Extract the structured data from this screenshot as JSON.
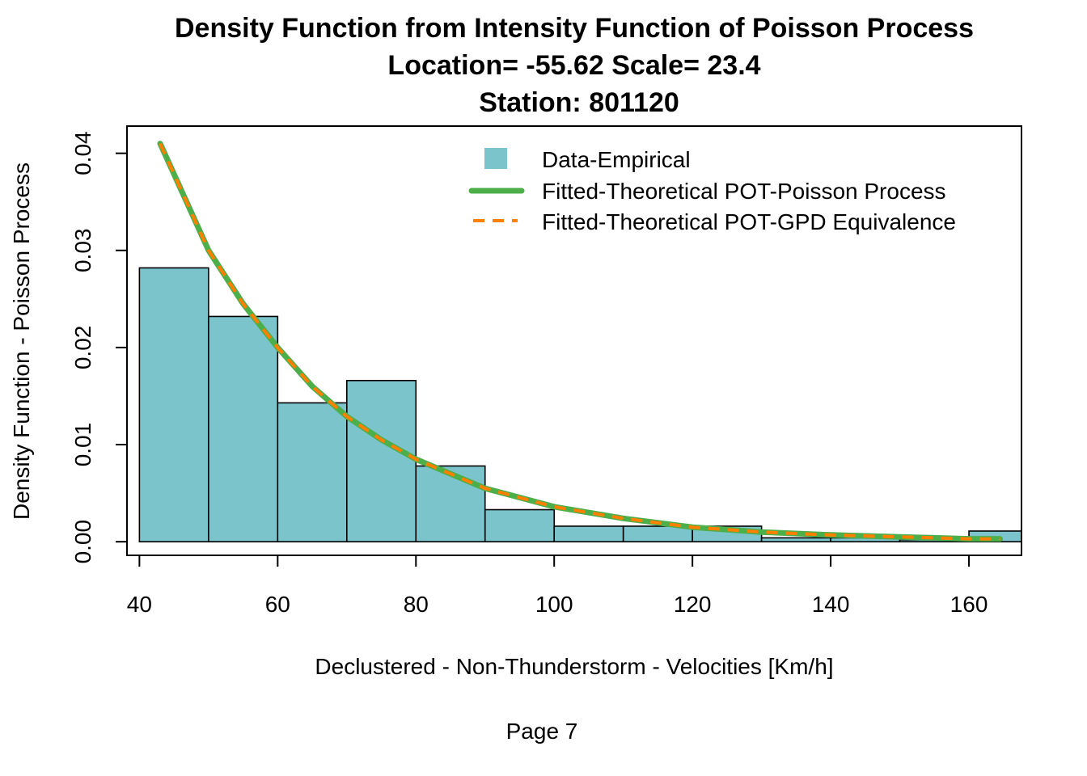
{
  "chart_data": {
    "type": "bar",
    "title_lines": [
      "Density Function from Intensity Function of Poisson Process",
      "Location= -55.62 Scale= 23.4",
      "Station: 801120"
    ],
    "xlabel": "Declustered - Non-Thunderstorm - Velocities [Km/h]",
    "ylabel": "Density Function - Poisson Process",
    "footer": "Page 7",
    "xlim": [
      38.2,
      167.6
    ],
    "ylim": [
      -0.0014,
      0.0428
    ],
    "x_ticks": [
      40,
      60,
      80,
      100,
      120,
      140,
      160
    ],
    "y_ticks": [
      0.0,
      0.01,
      0.02,
      0.03,
      0.04
    ],
    "y_tick_labels": [
      "0.00",
      "0.01",
      "0.02",
      "0.03",
      "0.04"
    ],
    "histogram": {
      "name": "Data-Empirical",
      "color": "#7CC4CC",
      "bins": [
        {
          "x0": 40,
          "x1": 50,
          "density": 0.0282
        },
        {
          "x0": 50,
          "x1": 60,
          "density": 0.0232
        },
        {
          "x0": 60,
          "x1": 70,
          "density": 0.0143
        },
        {
          "x0": 70,
          "x1": 80,
          "density": 0.0166
        },
        {
          "x0": 80,
          "x1": 90,
          "density": 0.0078
        },
        {
          "x0": 90,
          "x1": 100,
          "density": 0.0033
        },
        {
          "x0": 100,
          "x1": 110,
          "density": 0.0016
        },
        {
          "x0": 110,
          "x1": 120,
          "density": 0.0016
        },
        {
          "x0": 120,
          "x1": 130,
          "density": 0.0016
        },
        {
          "x0": 130,
          "x1": 140,
          "density": 0.0004
        },
        {
          "x0": 140,
          "x1": 150,
          "density": 0.0004
        },
        {
          "x0": 150,
          "x1": 160,
          "density": 0.0002
        },
        {
          "x0": 160,
          "x1": 170,
          "density": 0.0011
        }
      ]
    },
    "series": [
      {
        "name": "Fitted-Theoretical POT-Poisson Process",
        "color": "#4DAF4A",
        "style": "solid",
        "x": [
          43.0,
          50.0,
          55.0,
          60.0,
          65.0,
          70.0,
          75.0,
          80.0,
          90.0,
          100.0,
          110.0,
          120.0,
          130.0,
          140.0,
          150.0,
          160.0,
          164.5
        ],
        "y": [
          0.041,
          0.03,
          0.0245,
          0.02,
          0.016,
          0.0129,
          0.0105,
          0.0085,
          0.0055,
          0.0036,
          0.0024,
          0.0015,
          0.001,
          0.0007,
          0.0005,
          0.0003,
          0.0003
        ]
      },
      {
        "name": "Fitted-Theoretical POT-GPD Equivalence",
        "color": "#FF7F00",
        "style": "dashed",
        "x": [
          43.0,
          50.0,
          55.0,
          60.0,
          65.0,
          70.0,
          75.0,
          80.0,
          90.0,
          100.0,
          110.0,
          120.0,
          130.0,
          140.0,
          150.0,
          160.0,
          164.5
        ],
        "y": [
          0.041,
          0.03,
          0.0245,
          0.02,
          0.016,
          0.0129,
          0.0105,
          0.0085,
          0.0055,
          0.0036,
          0.0024,
          0.0015,
          0.001,
          0.0007,
          0.0005,
          0.0003,
          0.0003
        ]
      }
    ],
    "legend_position": "top-right",
    "grid": false
  }
}
